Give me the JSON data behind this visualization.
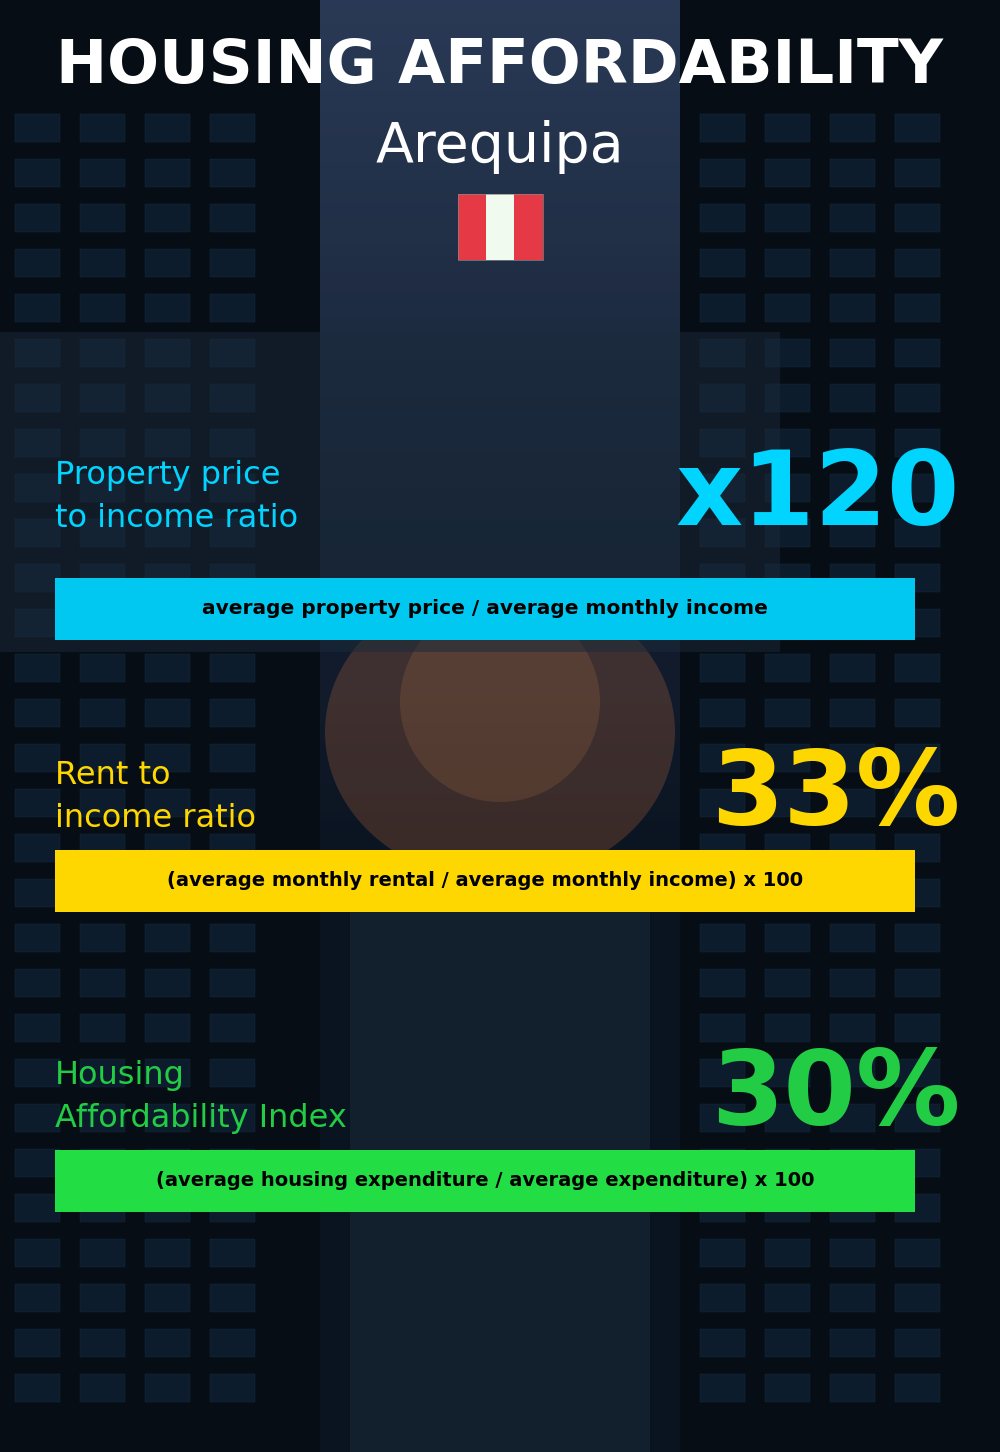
{
  "title_line1": "HOUSING AFFORDABILITY",
  "title_line2": "Arequipa",
  "section1_label": "Property price\nto income ratio",
  "section1_value": "x120",
  "section1_label_color": "#00d4ff",
  "section1_value_color": "#00d4ff",
  "section1_box_text": "average property price / average monthly income",
  "section1_box_bg": "#00c8f0",
  "section2_label": "Rent to\nincome ratio",
  "section2_value": "33%",
  "section2_label_color": "#ffd700",
  "section2_value_color": "#ffd700",
  "section2_box_text": "(average monthly rental / average monthly income) x 100",
  "section2_box_bg": "#ffd700",
  "section3_label": "Housing\nAffordability Index",
  "section3_value": "30%",
  "section3_label_color": "#22cc44",
  "section3_value_color": "#22cc44",
  "section3_box_text": "(average housing expenditure / average expenditure) x 100",
  "section3_box_bg": "#22dd44",
  "bg_dark": "#080f18",
  "bg_mid": "#101c2c",
  "building_color": "#0a1520",
  "overlay_alpha": 0.45,
  "flag_red": "#e63946",
  "flag_white": "#f1faee"
}
